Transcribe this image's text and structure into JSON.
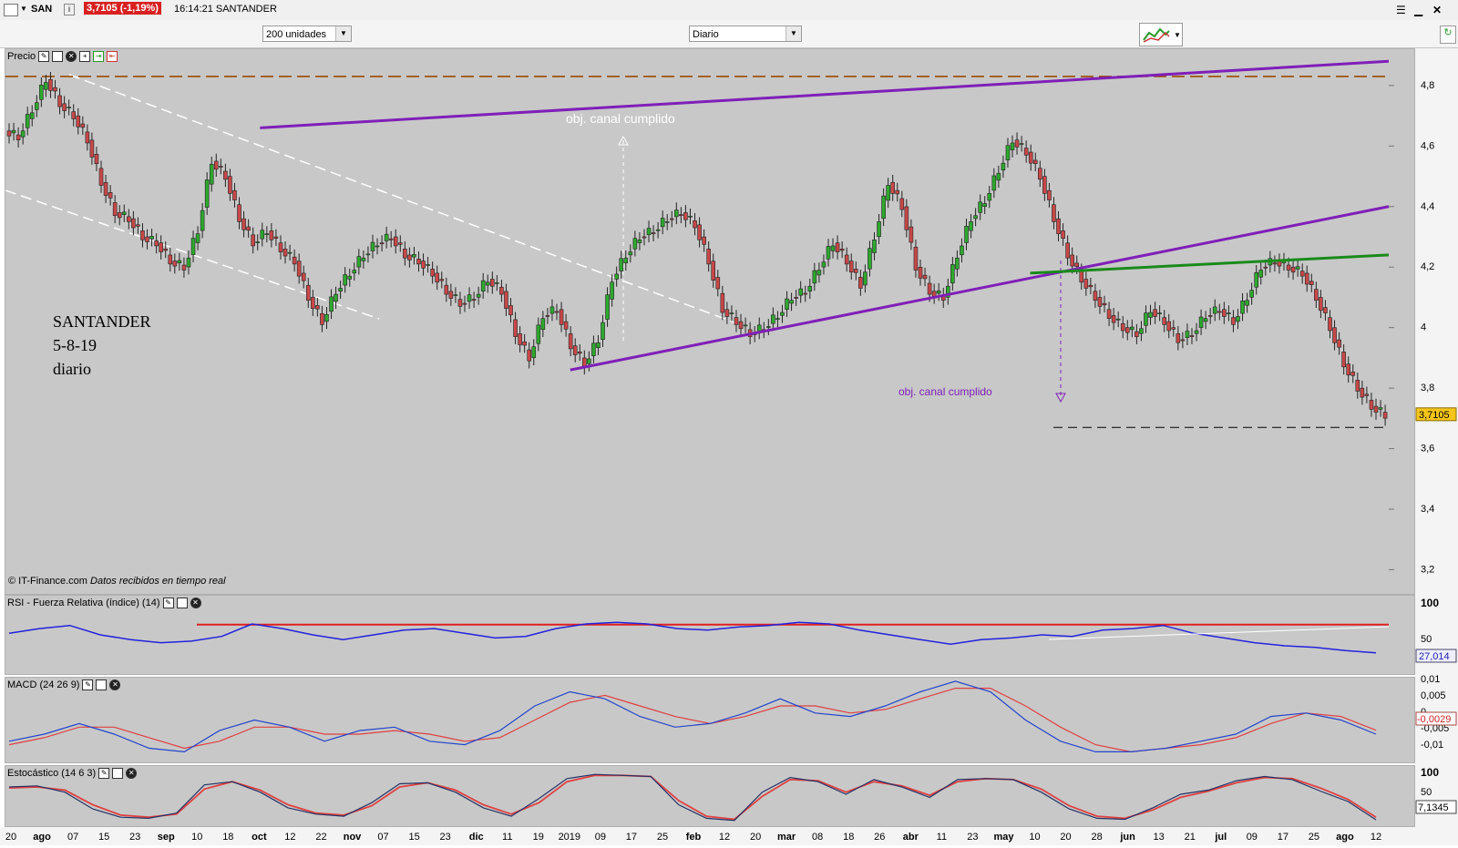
{
  "topbar": {
    "ticker": "SAN",
    "info_icon": "i",
    "price_change": "3,7105 (-1,19%)",
    "time_name": "16:14:21 SANTANDER"
  },
  "toolbar": {
    "units_select": "200 unidades",
    "period_select": "Diario"
  },
  "price_panel": {
    "title": "Precio",
    "copyright": "© IT-Finance.com",
    "copyright_note": "Datos recibidos en tiempo real",
    "annotation_label": "SANTANDER",
    "annotation_date": "5-8-19",
    "annotation_period": "diario",
    "target_label_1": "obj. canal cumplido",
    "target_label_2": "obj. canal cumplido",
    "last_price_badge": "3,7105",
    "colors": {
      "up": "#2ea82e",
      "down": "#c84848",
      "channel": "#7f1fb8",
      "neckline": "#1a8a1a",
      "resistance": "#9a4a00"
    }
  },
  "rsi_panel": {
    "title": "RSI - Fuerza Relativa (índice) (14)",
    "badge": "27,014"
  },
  "macd_panel": {
    "title": "MACD (24 26 9)",
    "badge": "-0,0029"
  },
  "stoch_panel": {
    "title": "Estocástico (14 6 3)",
    "badge": "7,1345"
  },
  "chart_data": {
    "type": "candlestick",
    "price_axis": {
      "ticks": [
        "4,8",
        "4,6",
        "4,4",
        "4,2",
        "4",
        "3,8",
        "3,6",
        "3,4",
        "3,2"
      ],
      "ylim": [
        3.12,
        4.92
      ]
    },
    "rsi_axis": {
      "ticks": [
        "100",
        "50"
      ],
      "overbought": 70
    },
    "macd_axis": {
      "ticks": [
        "0,01",
        "0,005",
        "0",
        "-0,005",
        "-0,01"
      ]
    },
    "stoch_axis": {
      "ticks": [
        "100",
        "50"
      ]
    },
    "x_ticks": [
      "20",
      "ago",
      "07",
      "15",
      "23",
      "sep",
      "10",
      "18",
      "oct",
      "12",
      "22",
      "nov",
      "07",
      "15",
      "23",
      "dic",
      "11",
      "19",
      "2019",
      "09",
      "17",
      "25",
      "feb",
      "12",
      "20",
      "mar",
      "08",
      "18",
      "26",
      "abr",
      "11",
      "23",
      "may",
      "10",
      "20",
      "28",
      "jun",
      "13",
      "21",
      "jul",
      "09",
      "17",
      "25",
      "ago",
      "12"
    ],
    "close_path": [
      4.63,
      4.72,
      4.82,
      4.74,
      4.7,
      4.62,
      4.48,
      4.38,
      4.36,
      4.3,
      4.28,
      4.22,
      4.2,
      4.32,
      4.55,
      4.5,
      4.36,
      4.28,
      4.32,
      4.26,
      4.22,
      4.1,
      4.02,
      4.12,
      4.18,
      4.24,
      4.28,
      4.3,
      4.24,
      4.22,
      4.18,
      4.12,
      4.08,
      4.1,
      4.16,
      4.12,
      3.98,
      3.9,
      4.04,
      4.06,
      3.94,
      3.88,
      3.96,
      4.16,
      4.24,
      4.3,
      4.32,
      4.36,
      4.38,
      4.34,
      4.22,
      4.06,
      4.02,
      3.98,
      4.0,
      4.04,
      4.1,
      4.12,
      4.2,
      4.28,
      4.22,
      4.14,
      4.3,
      4.48,
      4.4,
      4.2,
      4.12,
      4.1,
      4.24,
      4.36,
      4.42,
      4.52,
      4.62,
      4.58,
      4.5,
      4.36,
      4.24,
      4.16,
      4.1,
      4.04,
      4.0,
      3.98,
      4.06,
      4.02,
      3.96,
      3.98,
      4.04,
      4.06,
      4.02,
      4.1,
      4.2,
      4.22,
      4.2,
      4.18,
      4.1,
      4.0,
      3.88,
      3.8,
      3.74,
      3.7105
    ],
    "channel_upper": {
      "from": [
        "oct",
        4.66
      ],
      "to": [
        "ago",
        4.88
      ]
    },
    "channel_lower": {
      "from": [
        "2019",
        3.86
      ],
      "to": [
        "ago",
        4.4
      ]
    },
    "neckline": {
      "from": [
        "may",
        4.18
      ],
      "to": [
        "ago",
        4.24
      ]
    },
    "resistance_line": 4.83,
    "target_line": 3.67,
    "rsi_path": [
      52,
      58,
      62,
      50,
      44,
      40,
      42,
      48,
      64,
      58,
      50,
      44,
      50,
      56,
      58,
      52,
      46,
      48,
      58,
      64,
      66,
      64,
      58,
      56,
      60,
      62,
      66,
      64,
      56,
      50,
      44,
      38,
      44,
      46,
      50,
      48,
      56,
      58,
      62,
      52,
      46,
      40,
      36,
      34,
      30,
      27.014
    ],
    "macd_line": [
      -0.006,
      -0.004,
      -0.001,
      -0.004,
      -0.008,
      -0.009,
      -0.003,
      0.0,
      -0.002,
      -0.006,
      -0.003,
      -0.002,
      -0.006,
      -0.007,
      -0.003,
      0.004,
      0.008,
      0.006,
      0.001,
      -0.002,
      -0.001,
      0.002,
      0.006,
      0.002,
      0.001,
      0.004,
      0.008,
      0.011,
      0.008,
      0.0,
      -0.006,
      -0.009,
      -0.009,
      -0.008,
      -0.006,
      -0.004,
      0.001,
      0.002,
      0.0,
      -0.004
    ],
    "signal_line": [
      -0.007,
      -0.005,
      -0.002,
      -0.002,
      -0.005,
      -0.008,
      -0.006,
      -0.002,
      -0.002,
      -0.004,
      -0.004,
      -0.003,
      -0.004,
      -0.006,
      -0.005,
      0.0,
      0.005,
      0.007,
      0.004,
      0.001,
      -0.001,
      0.001,
      0.004,
      0.004,
      0.002,
      0.003,
      0.006,
      0.009,
      0.009,
      0.004,
      -0.002,
      -0.007,
      -0.009,
      -0.008,
      -0.007,
      -0.005,
      -0.001,
      0.002,
      0.001,
      -0.0029
    ],
    "stoch_k": [
      70,
      72,
      60,
      28,
      12,
      10,
      20,
      74,
      80,
      60,
      30,
      18,
      14,
      40,
      76,
      78,
      60,
      30,
      14,
      48,
      86,
      94,
      92,
      90,
      36,
      10,
      6,
      60,
      88,
      80,
      56,
      84,
      70,
      50,
      84,
      86,
      84,
      60,
      28,
      10,
      8,
      30,
      56,
      64,
      82,
      90,
      84,
      62,
      42,
      7.1345
    ],
    "stoch_d": [
      68,
      70,
      64,
      36,
      16,
      12,
      18,
      66,
      80,
      64,
      36,
      20,
      16,
      34,
      70,
      78,
      64,
      36,
      18,
      40,
      80,
      92,
      92,
      90,
      44,
      14,
      8,
      52,
      84,
      82,
      60,
      80,
      72,
      54,
      80,
      86,
      84,
      66,
      34,
      14,
      10,
      26,
      50,
      62,
      78,
      88,
      86,
      68,
      46,
      12
    ]
  }
}
